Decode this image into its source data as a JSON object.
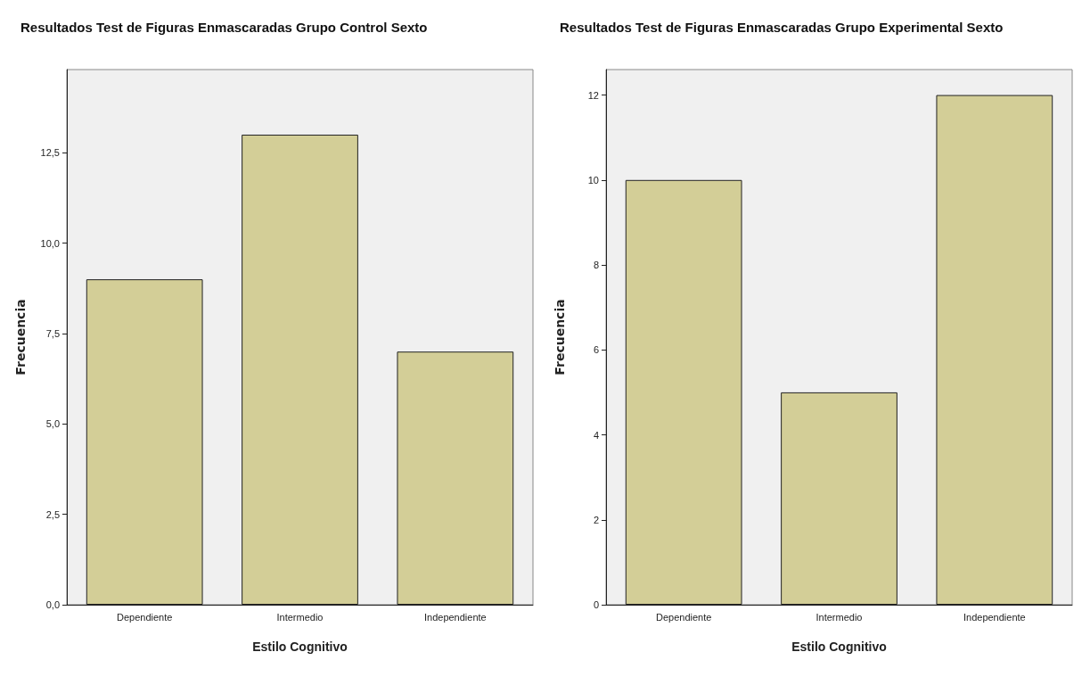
{
  "chart_data": [
    {
      "type": "bar",
      "title": "Resultados Test de Figuras Enmascaradas Grupo Control Sexto",
      "xlabel": "Estilo Cognitivo",
      "ylabel": "Frecuencia",
      "categories": [
        "Dependiente",
        "Intermedio",
        "Independiente"
      ],
      "values": [
        9,
        13,
        7
      ],
      "color": "#d3ce97",
      "ylim": [
        0,
        14.8
      ],
      "yticks": [
        {
          "value": 0,
          "label": "0,0"
        },
        {
          "value": 2.5,
          "label": "2,5"
        },
        {
          "value": 5,
          "label": "5,0"
        },
        {
          "value": 7.5,
          "label": "7,5"
        },
        {
          "value": 10,
          "label": "10,0"
        },
        {
          "value": 12.5,
          "label": "12,5"
        }
      ],
      "grid": false
    },
    {
      "type": "bar",
      "title": "Resultados Test de Figuras Enmascaradas Grupo Experimental Sexto",
      "xlabel": "Estilo Cognitivo",
      "ylabel": "Frecuencia",
      "categories": [
        "Dependiente",
        "Intermedio",
        "Independiente"
      ],
      "values": [
        10,
        5,
        12
      ],
      "color": "#d3ce97",
      "ylim": [
        0,
        12.6
      ],
      "yticks": [
        0,
        2,
        4,
        6,
        8,
        10,
        12
      ],
      "grid": false
    }
  ]
}
